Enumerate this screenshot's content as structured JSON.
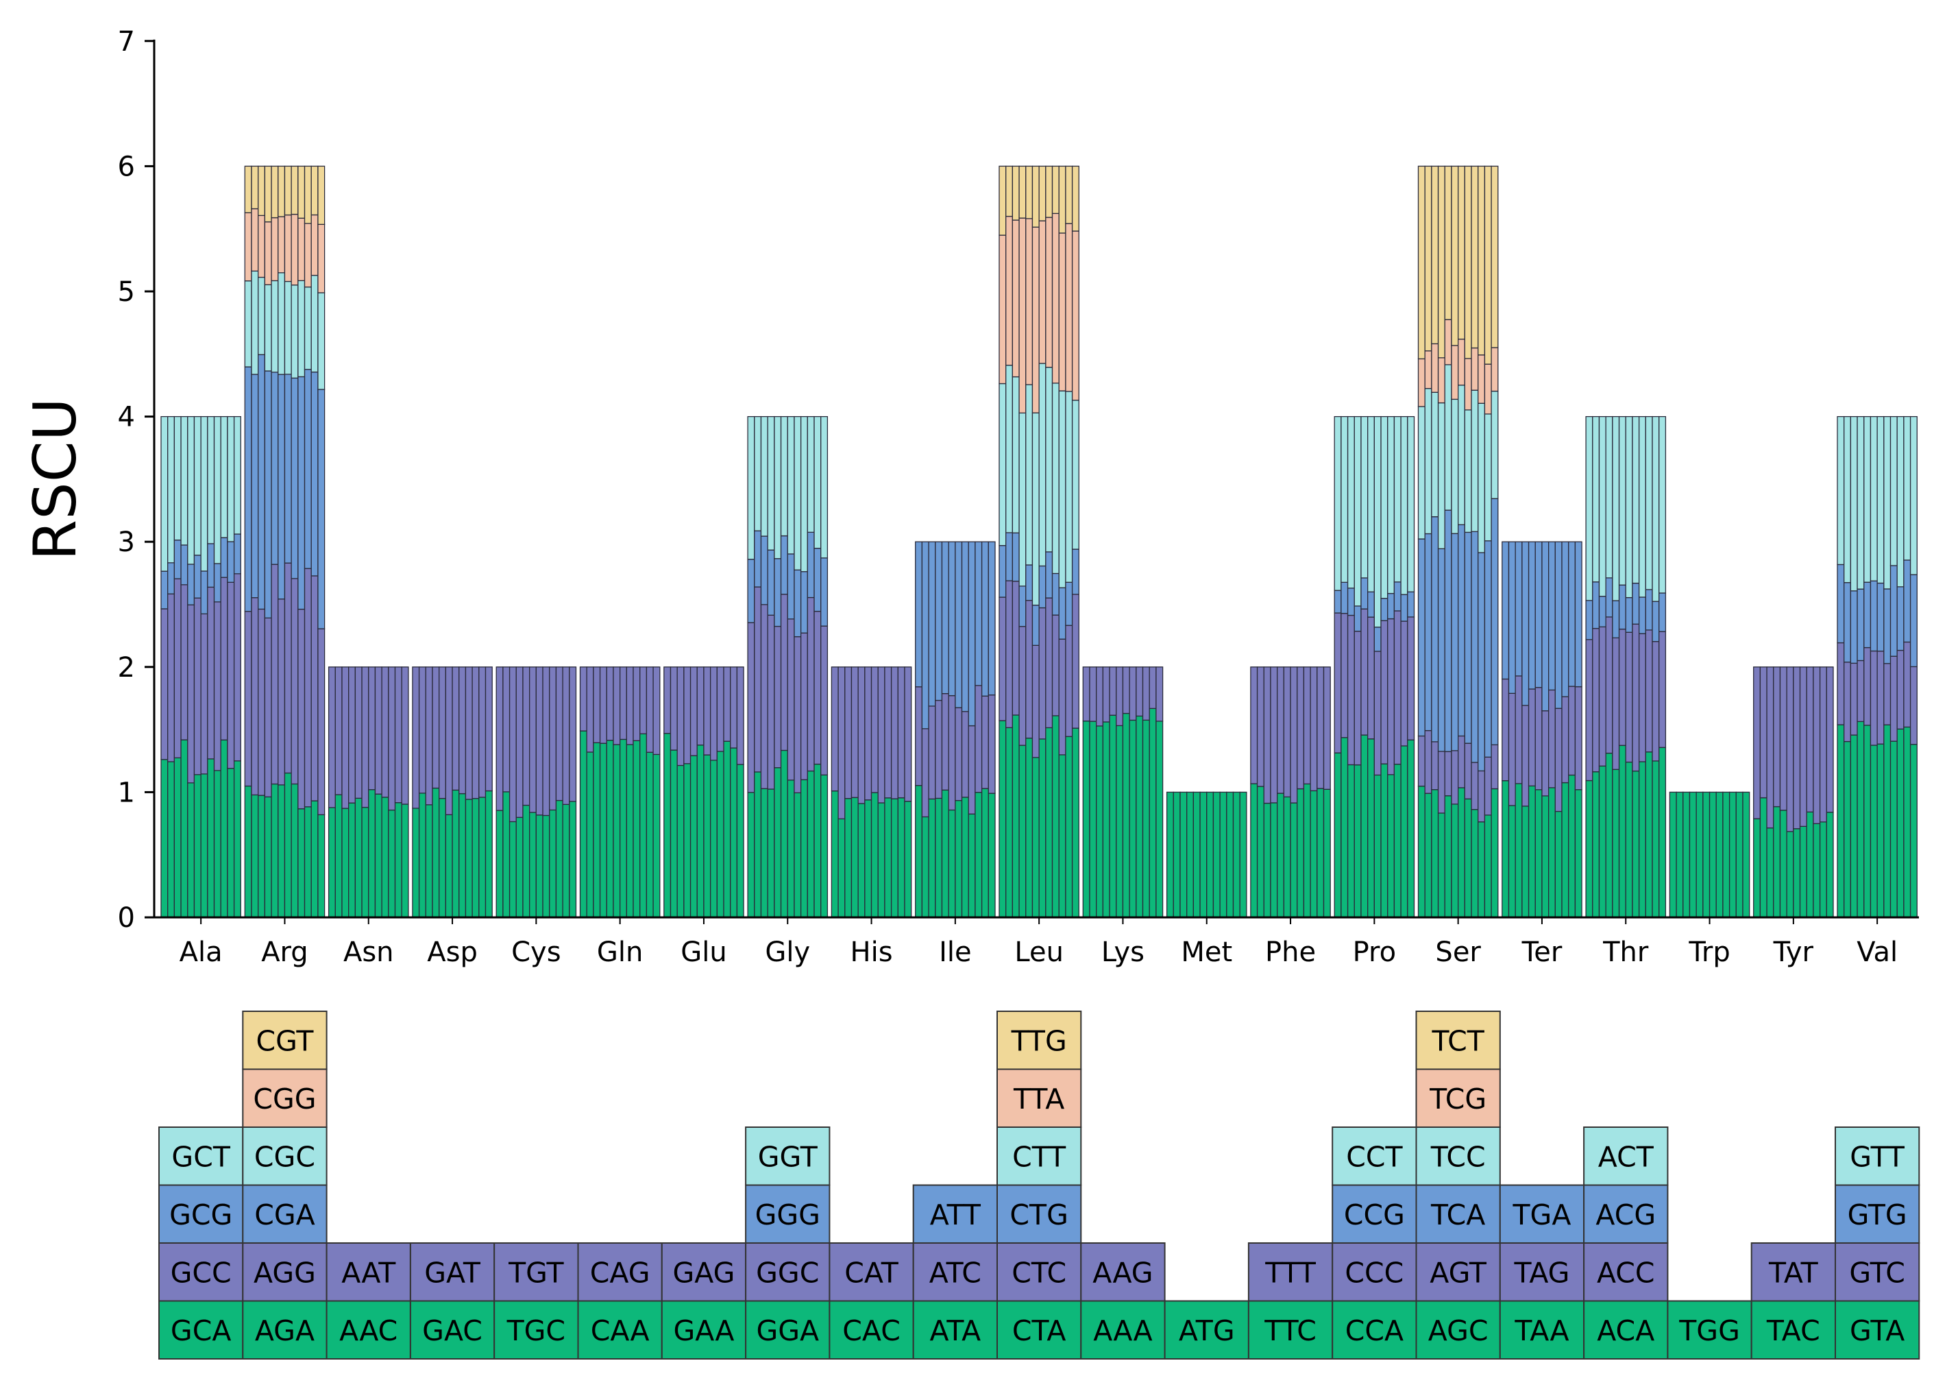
{
  "chart_data": {
    "type": "bar",
    "subtype": "stacked-bar-per-species",
    "title": "",
    "ylabel": "RSCU",
    "xlabel": "",
    "ylim": [
      0,
      7
    ],
    "yticks": [
      0,
      1,
      2,
      3,
      4,
      5,
      6,
      7
    ],
    "grid": false,
    "bars_per_group": 12,
    "level_colors": [
      "#0db87a",
      "#7b7cbe",
      "#6c9bd6",
      "#a3e4e4",
      "#f2c2aa",
      "#f0d898"
    ],
    "categories": [
      "Ala",
      "Arg",
      "Asn",
      "Asp",
      "Cys",
      "Gln",
      "Glu",
      "Gly",
      "His",
      "Ile",
      "Leu",
      "Lys",
      "Met",
      "Phe",
      "Pro",
      "Ser",
      "Ter",
      "Thr",
      "Trp",
      "Tyr",
      "Val"
    ],
    "groups": [
      {
        "aa": "Ala",
        "total": 4,
        "codons": [
          "GCA",
          "GCC",
          "GCG",
          "GCT"
        ],
        "mean_rscu": [
          1.25,
          1.35,
          0.3,
          1.1
        ]
      },
      {
        "aa": "Arg",
        "total": 6,
        "codons": [
          "AGA",
          "AGG",
          "CGA",
          "CGC",
          "CGG",
          "CGT"
        ],
        "mean_rscu": [
          1.0,
          1.6,
          1.8,
          0.7,
          0.5,
          0.4
        ]
      },
      {
        "aa": "Asn",
        "total": 2,
        "codons": [
          "AAC",
          "AAT"
        ],
        "mean_rscu": [
          0.92,
          1.08
        ]
      },
      {
        "aa": "Asp",
        "total": 2,
        "codons": [
          "GAC",
          "GAT"
        ],
        "mean_rscu": [
          0.95,
          1.05
        ]
      },
      {
        "aa": "Cys",
        "total": 2,
        "codons": [
          "TGC",
          "TGT"
        ],
        "mean_rscu": [
          0.9,
          1.1
        ]
      },
      {
        "aa": "Gln",
        "total": 2,
        "codons": [
          "CAA",
          "CAG"
        ],
        "mean_rscu": [
          1.38,
          0.62
        ]
      },
      {
        "aa": "Glu",
        "total": 2,
        "codons": [
          "GAA",
          "GAG"
        ],
        "mean_rscu": [
          1.33,
          0.67
        ]
      },
      {
        "aa": "Gly",
        "total": 4,
        "codons": [
          "GGA",
          "GGC",
          "GGG",
          "GGT"
        ],
        "mean_rscu": [
          1.15,
          1.3,
          0.5,
          1.05
        ]
      },
      {
        "aa": "His",
        "total": 2,
        "codons": [
          "CAC",
          "CAT"
        ],
        "mean_rscu": [
          0.95,
          1.05
        ]
      },
      {
        "aa": "Ile",
        "total": 3,
        "codons": [
          "ATA",
          "ATC",
          "ATT"
        ],
        "mean_rscu": [
          0.95,
          0.8,
          1.25
        ]
      },
      {
        "aa": "Leu",
        "total": 6,
        "codons": [
          "CTA",
          "CTC",
          "CTG",
          "CTT",
          "TTA",
          "TTG"
        ],
        "mean_rscu": [
          1.5,
          1.0,
          0.35,
          1.4,
          1.3,
          0.45
        ]
      },
      {
        "aa": "Lys",
        "total": 2,
        "codons": [
          "AAA",
          "AAG"
        ],
        "mean_rscu": [
          1.58,
          0.42
        ]
      },
      {
        "aa": "Met",
        "total": 1,
        "codons": [
          "ATG"
        ],
        "mean_rscu": [
          1.0
        ]
      },
      {
        "aa": "Phe",
        "total": 2,
        "codons": [
          "TTC",
          "TTT"
        ],
        "mean_rscu": [
          0.95,
          1.05
        ]
      },
      {
        "aa": "Pro",
        "total": 4,
        "codons": [
          "CCA",
          "CCC",
          "CCG",
          "CCT"
        ],
        "mean_rscu": [
          1.3,
          1.1,
          0.2,
          1.4
        ]
      },
      {
        "aa": "Ser",
        "total": 6,
        "codons": [
          "AGC",
          "AGT",
          "TCA",
          "TCC",
          "TCG",
          "TCT"
        ],
        "mean_rscu": [
          0.95,
          0.45,
          1.8,
          1.05,
          0.35,
          1.4
        ]
      },
      {
        "aa": "Ter",
        "total": 3,
        "codons": [
          "TAA",
          "TAG",
          "TGA"
        ],
        "mean_rscu": [
          1.0,
          0.8,
          1.2
        ]
      },
      {
        "aa": "Thr",
        "total": 4,
        "codons": [
          "ACA",
          "ACC",
          "ACG",
          "ACT"
        ],
        "mean_rscu": [
          1.2,
          1.05,
          0.3,
          1.45
        ]
      },
      {
        "aa": "Trp",
        "total": 1,
        "codons": [
          "TGG"
        ],
        "mean_rscu": [
          1.0
        ]
      },
      {
        "aa": "Tyr",
        "total": 2,
        "codons": [
          "TAC",
          "TAT"
        ],
        "mean_rscu": [
          0.8,
          1.2
        ]
      },
      {
        "aa": "Val",
        "total": 4,
        "codons": [
          "GTA",
          "GTC",
          "GTG",
          "GTT"
        ],
        "mean_rscu": [
          1.5,
          0.6,
          0.6,
          1.3
        ]
      }
    ]
  }
}
